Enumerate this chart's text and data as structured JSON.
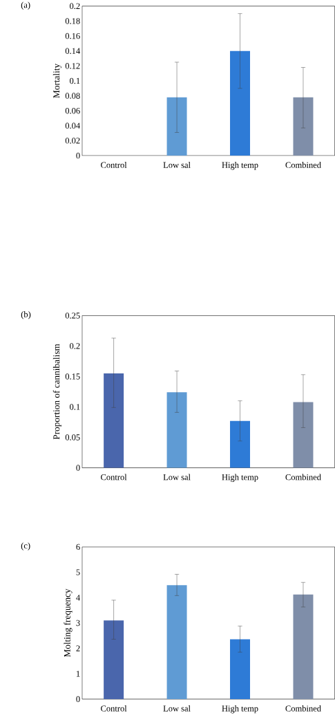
{
  "chart_data": [
    {
      "type": "bar",
      "title": "(a)",
      "ylabel": "Mortality",
      "categories": [
        "Control",
        "Low sal",
        "High temp",
        "Combined"
      ],
      "values": [
        0,
        0.078,
        0.14,
        0.078
      ],
      "errors": [
        null,
        [
          0.031,
          0.125
        ],
        [
          0.09,
          0.19
        ],
        [
          0.037,
          0.118
        ]
      ],
      "colors": [
        "#4a66ac",
        "#5f9bd4",
        "#2e7bd6",
        "#7f8ea9"
      ],
      "ylim": [
        0,
        0.2
      ],
      "yticks": [
        0,
        0.02,
        0.04,
        0.06,
        0.08,
        0.1,
        0.12,
        0.14,
        0.16,
        0.18,
        0.2
      ]
    },
    {
      "type": "bar",
      "title": "(b)",
      "ylabel": "Proportion of cannibalism",
      "categories": [
        "Control",
        "Low sal",
        "High temp",
        "Combined"
      ],
      "values": [
        0.155,
        0.124,
        0.077,
        0.108
      ],
      "errors": [
        [
          0.099,
          0.213
        ],
        [
          0.091,
          0.159
        ],
        [
          0.044,
          0.11
        ],
        [
          0.066,
          0.153
        ]
      ],
      "colors": [
        "#4a66ac",
        "#5f9bd4",
        "#2e7bd6",
        "#7f8ea9"
      ],
      "ylim": [
        0,
        0.25
      ],
      "yticks": [
        0,
        0.05,
        0.1,
        0.15,
        0.2,
        0.25
      ]
    },
    {
      "type": "bar",
      "title": "(c)",
      "ylabel": "Molting frequency",
      "categories": [
        "Control",
        "Low sal",
        "High temp",
        "Combined"
      ],
      "values": [
        3.1,
        4.49,
        2.36,
        4.12
      ],
      "errors": [
        [
          2.36,
          3.9
        ],
        [
          4.08,
          4.92
        ],
        [
          1.85,
          2.88
        ],
        [
          3.63,
          4.6
        ]
      ],
      "colors": [
        "#4a66ac",
        "#5f9bd4",
        "#2e7bd6",
        "#7f8ea9"
      ],
      "ylim": [
        0,
        6
      ],
      "yticks": [
        0,
        1,
        2,
        3,
        4,
        5,
        6
      ]
    }
  ]
}
